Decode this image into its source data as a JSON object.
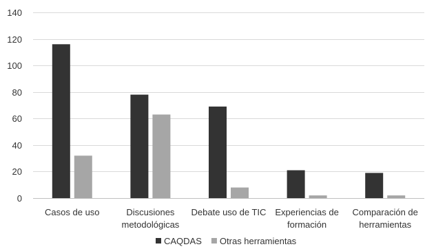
{
  "chart_data": {
    "type": "bar",
    "title": "",
    "xlabel": "",
    "ylabel": "",
    "ylim": [
      0,
      140
    ],
    "yticks": [
      0,
      20,
      40,
      60,
      80,
      100,
      120,
      140
    ],
    "grid": true,
    "legend_position": "bottom",
    "categories": [
      [
        "Casos de uso"
      ],
      [
        "Discusiones",
        "metodológicas"
      ],
      [
        "Debate uso de TIC"
      ],
      [
        "Experiencias de",
        "formación"
      ],
      [
        "Comparación de",
        "herramientas"
      ]
    ],
    "series": [
      {
        "name": "CAQDAS",
        "color": "#333333",
        "values": [
          116,
          78,
          69,
          21,
          19
        ]
      },
      {
        "name": "Otras herramientas",
        "color": "#a6a6a6",
        "values": [
          32,
          63,
          8,
          2,
          2
        ]
      }
    ]
  }
}
